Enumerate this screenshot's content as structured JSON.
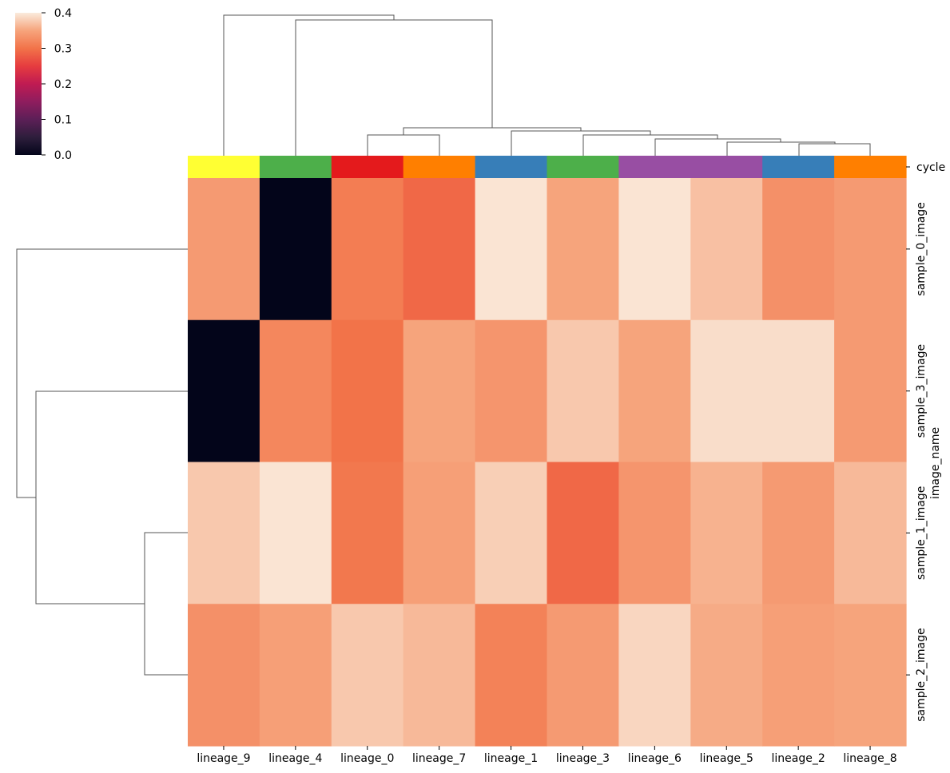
{
  "chart_data": {
    "type": "heatmap",
    "title": "",
    "xlabel": "",
    "ylabel": "image_name",
    "columns": [
      "lineage_9",
      "lineage_4",
      "lineage_0",
      "lineage_7",
      "lineage_1",
      "lineage_3",
      "lineage_6",
      "lineage_5",
      "lineage_2",
      "lineage_8"
    ],
    "rows": [
      "sample_0_image",
      "sample_3_image",
      "sample_1_image",
      "sample_2_image"
    ],
    "values": [
      [
        0.34,
        0.0,
        0.31,
        0.29,
        0.395,
        0.35,
        0.395,
        0.37,
        0.33,
        0.34
      ],
      [
        0.0,
        0.32,
        0.3,
        0.35,
        0.335,
        0.375,
        0.35,
        0.39,
        0.39,
        0.34
      ],
      [
        0.375,
        0.395,
        0.305,
        0.345,
        0.38,
        0.29,
        0.335,
        0.36,
        0.34,
        0.365
      ],
      [
        0.33,
        0.345,
        0.375,
        0.365,
        0.315,
        0.34,
        0.385,
        0.355,
        0.345,
        0.35
      ]
    ],
    "colorbar": {
      "vmin": 0.0,
      "vmax": 0.4,
      "ticks": [
        "0.0",
        "0.1",
        "0.2",
        "0.3",
        "0.4"
      ]
    },
    "col_colors": {
      "label": "cycle",
      "colors": [
        "#ffff33",
        "#4daf4a",
        "#e41a1c",
        "#ff7f00",
        "#377eb8",
        "#4daf4a",
        "#984ea3",
        "#984ea3",
        "#377eb8",
        "#ff7f00"
      ]
    },
    "col_dendrogram": "hierarchical clustering tree over 10 columns",
    "row_dendrogram": "hierarchical clustering tree over 4 rows",
    "grid": false,
    "legend": "none"
  }
}
